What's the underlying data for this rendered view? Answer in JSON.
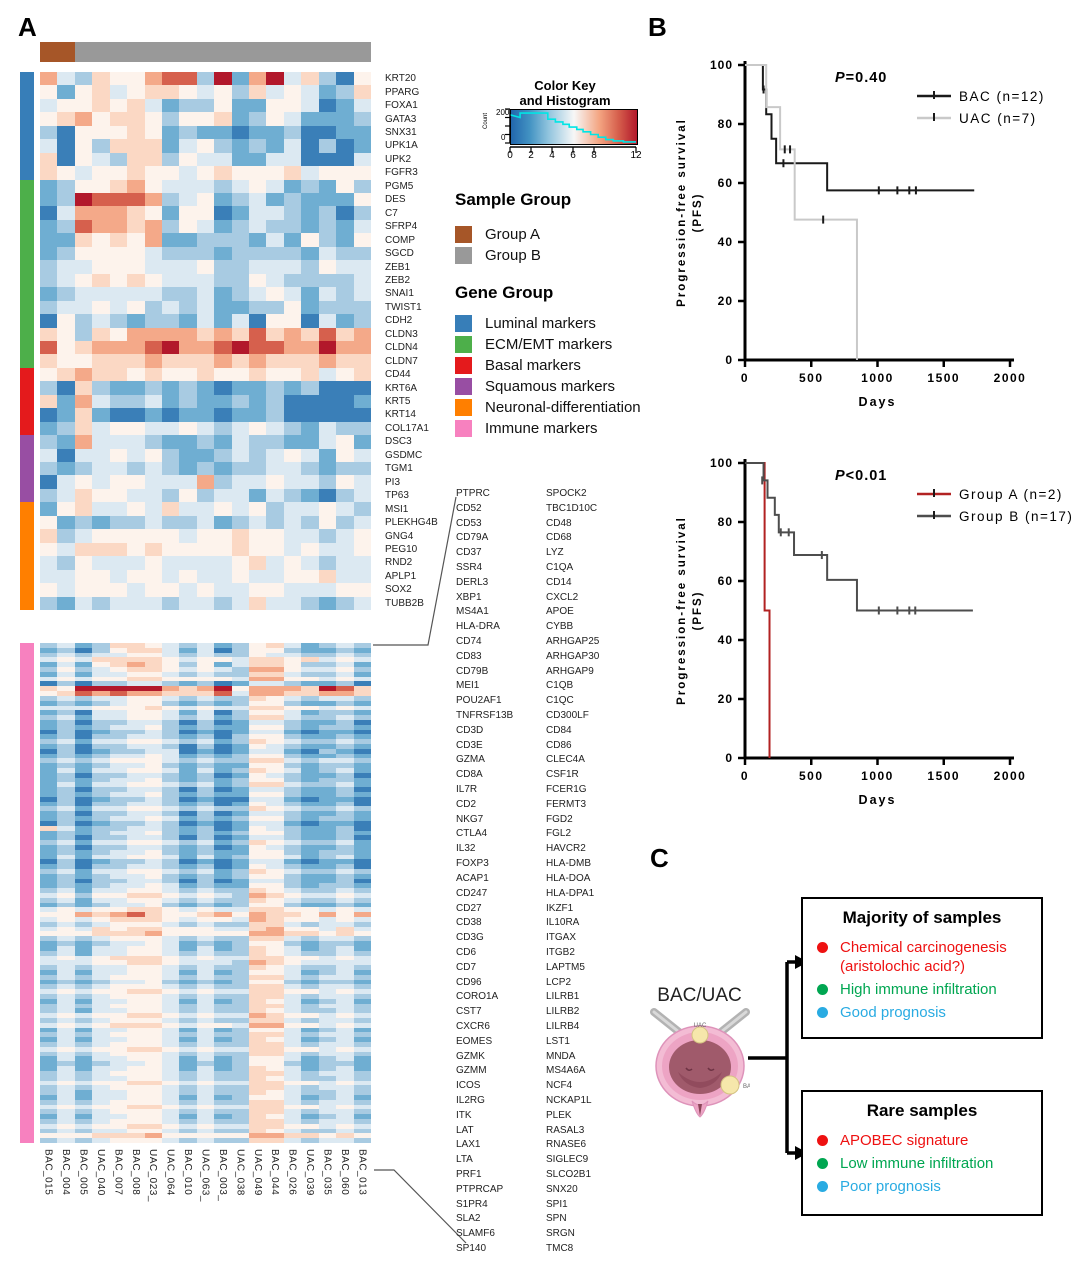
{
  "panelA": {
    "label": "A",
    "samples": [
      "BAC_015",
      "BAC_004",
      "BAC_005",
      "UAC_040",
      "BAC_007",
      "BAC_008",
      "UAC_023_",
      "UAC_064",
      "BAC_010",
      "UAC_063_",
      "BAC_003_",
      "UAC_038",
      "UAC_049",
      "BAC_044",
      "BAC_026",
      "UAC_039",
      "BAC_035",
      "BAC_060",
      "BAC_013"
    ],
    "sample_group": {
      "title": "Sample Group",
      "items": [
        {
          "label": "Group A",
          "color": "#a65628",
          "n_columns": 2
        },
        {
          "label": "Group B",
          "color": "#999999",
          "n_columns": 17
        }
      ]
    },
    "gene_group": {
      "title": "Gene Group",
      "items": [
        {
          "label": "Luminal markers",
          "color": "#377eb8",
          "rows": 8
        },
        {
          "label": "ECM/EMT markers",
          "color": "#4daf4a",
          "rows": 14
        },
        {
          "label": "Basal markers",
          "color": "#e41a1c",
          "rows": 5
        },
        {
          "label": "Squamous markers",
          "color": "#984ea3",
          "rows": 5
        },
        {
          "label": "Neuronal-differentiation",
          "color": "#ff7f00",
          "rows": 8
        },
        {
          "label": "Immune markers",
          "color": "#f781bf",
          "rows": 104
        }
      ]
    },
    "color_key": {
      "title_line1": "Color Key",
      "title_line2": "and Histogram",
      "count_label": "Count",
      "count_ticks": [
        "200",
        "0"
      ],
      "x_ticks": [
        0,
        2,
        4,
        6,
        8,
        12
      ],
      "x_max": 12,
      "hist": [
        [
          0,
          0.83
        ],
        [
          0.08,
          0.75
        ],
        [
          0.08,
          0.88
        ],
        [
          0.3,
          0.88
        ],
        [
          0.3,
          0.7
        ],
        [
          0.36,
          0.7
        ],
        [
          0.36,
          0.62
        ],
        [
          0.42,
          0.62
        ],
        [
          0.42,
          0.55
        ],
        [
          0.47,
          0.55
        ],
        [
          0.47,
          0.47
        ],
        [
          0.53,
          0.47
        ],
        [
          0.53,
          0.4
        ],
        [
          0.58,
          0.4
        ],
        [
          0.58,
          0.33
        ],
        [
          0.64,
          0.33
        ],
        [
          0.64,
          0.25
        ],
        [
          0.7,
          0.25
        ],
        [
          0.7,
          0.17
        ],
        [
          0.76,
          0.17
        ],
        [
          0.76,
          0.1
        ],
        [
          0.82,
          0.1
        ],
        [
          0.82,
          0.06
        ],
        [
          0.9,
          0.06
        ],
        [
          0.9,
          0.03
        ],
        [
          1,
          0.03
        ]
      ]
    },
    "palette": [
      "#2166ac",
      "#3a7fb8",
      "#6faed2",
      "#a8cbe2",
      "#dce9f2",
      "#fdf3ec",
      "#fbd8c4",
      "#f4a989",
      "#d6604d",
      "#b2182b"
    ],
    "immune_gene_list": {
      "left": [
        "PTPRC",
        "CD52",
        "CD53",
        "CD79A",
        "CD37",
        "SSR4",
        "DERL3",
        "XBP1",
        "MS4A1",
        "HLA-DRA",
        "CD74",
        "CD83",
        "CD79B",
        "MEI1",
        "POU2AF1",
        "TNFRSF13B",
        "CD3D",
        "CD3E",
        "GZMA",
        "CD8A",
        "IL7R",
        "CD2",
        "NKG7",
        "CTLA4",
        "IL32",
        "FOXP3",
        "ACAP1",
        "CD247",
        "CD27",
        "CD38",
        "CD3G",
        "CD6",
        "CD7",
        "CD96",
        "CORO1A",
        "CST7",
        "CXCR6",
        "EOMES",
        "GZMK",
        "GZMM",
        "ICOS",
        "IL2RG",
        "ITK",
        "LAT",
        "LAX1",
        "LTA",
        "PRF1",
        "PTPRCAP",
        "S1PR4",
        "SLA2",
        "SLAMF6",
        "SP140"
      ],
      "right": [
        "SPOCK2",
        "TBC1D10C",
        "CD48",
        "CD68",
        "LYZ",
        "C1QA",
        "CD14",
        "CXCL2",
        "APOE",
        "CYBB",
        "ARHGAP25",
        "ARHGAP30",
        "ARHGAP9",
        "C1QB",
        "C1QC",
        "CD300LF",
        "CD84",
        "CD86",
        "CLEC4A",
        "CSF1R",
        "FCER1G",
        "FERMT3",
        "FGD2",
        "FGL2",
        "HAVCR2",
        "HLA-DMB",
        "HLA-DOA",
        "HLA-DPA1",
        "IKZF1",
        "IL10RA",
        "ITGAX",
        "ITGB2",
        "LAPTM5",
        "LCP2",
        "LILRB1",
        "LILRB2",
        "LILRB4",
        "LST1",
        "MNDA",
        "MS4A6A",
        "NCF4",
        "NCKAP1L",
        "PLEK",
        "RASAL3",
        "RNASE6",
        "SIGLEC9",
        "SLCO2B1",
        "SNX20",
        "SPI1",
        "SPN",
        "SRGN",
        "TMC8"
      ]
    }
  },
  "chart_data": [
    {
      "id": "top_heatmap",
      "type": "heatmap",
      "note": "Expression levels encoded 0(low,blue)-9(high,red) per cell; value scale 0-12",
      "columns": [
        "BAC_015",
        "BAC_004",
        "BAC_005",
        "UAC_040",
        "BAC_007",
        "BAC_008",
        "UAC_023_",
        "UAC_064",
        "BAC_010",
        "UAC_063_",
        "BAC_003_",
        "UAC_038",
        "UAC_049",
        "BAC_044",
        "BAC_026",
        "UAC_039",
        "BAC_035",
        "BAC_060",
        "BAC_013"
      ],
      "rows": [
        "KRT20",
        "PPARG",
        "FOXA1",
        "GATA3",
        "SNX31",
        "UPK1A",
        "UPK2",
        "FGFR3",
        "PGM5",
        "DES",
        "C7",
        "SFRP4",
        "COMP",
        "SGCD",
        "ZEB1",
        "ZEB2",
        "SNAI1",
        "TWIST1",
        "CDH2",
        "CLDN3",
        "CLDN4",
        "CLDN7",
        "CD44",
        "KRT6A",
        "KRT5",
        "KRT14",
        "COL17A1",
        "DSC3",
        "GSDMC",
        "TGM1",
        "PI3",
        "TP63",
        "MSI1",
        "PLEKHG4B",
        "GNG4",
        "PEG10",
        "RND2",
        "APLP1",
        "SOX2",
        "TUBB2B"
      ],
      "level_strings": [
        "7436557883927946315",
        "5256456654536454236",
        "4556564233522554124",
        "5675665355623542223",
        "3155565232212231122",
        "4153666245323241312",
        "6154366354422441114",
        "6545565545655564555",
        "2355675444345423253",
        "2398887345234232225",
        "1477765255124432313",
        "2387767354234332324",
        "2265657223332425325",
        "2355554333233332433",
        "3445554445334443544",
        "3456565444335433334",
        "2344444334234542434",
        "3445453434223352333",
        "1534323324241551423",
        "6536577776768676867",
        "8567778977898877977",
        "6556667666767666766",
        "5676656556556556456",
        "3163223232122323111",
        "6274334232232311112",
        "1262112122122311111",
        "2364554454345432433",
        "3274443223243322452",
        "4144545322343454254",
        "3234434323233443233",
        "1454554447344544354",
        "3465544353442432134",
        "2564454644545344543",
        "5232334334234343534",
        "6345555545565544345",
        "5466656555565545445",
        "4354445444456454344",
        "4455455454454455644",
        "5455545545445544455",
        "3243444344346443234"
      ]
    },
    {
      "id": "bottom_heatmap",
      "type": "heatmap",
      "note": "Immune marker genes, row order = immune_gene_list left column then right column",
      "columns": [
        "BAC_015",
        "BAC_004",
        "BAC_005",
        "UAC_040",
        "BAC_007",
        "BAC_008",
        "UAC_023_",
        "UAC_064",
        "BAC_010",
        "UAC_063_",
        "BAC_003_",
        "UAC_038",
        "UAC_049",
        "BAC_044",
        "BAC_026",
        "UAC_039",
        "BAC_035",
        "BAC_060",
        "BAC_013"
      ],
      "level_strings": [
        "3423665434235642343",
        "2313566424135532232",
        "3434455434335443343",
        "4546666545546656454",
        "2425676535246653342",
        "3534566545437754453",
        "2424455434336643342",
        "4545566555547755454",
        "1313344323124432231",
        "6599999767957776986",
        "5687877666847766776",
        "3434455434336543443",
        "2323455323235532232",
        "4445556545446655454",
        "2314455424135542332",
        "3424455434236643343",
        "2313344313124432231",
        "2323445323225532332",
        "1312334312124421221",
        "2313344323135532232",
        "3424455434236543343",
        "2313344313125432232",
        "1312334412124421321",
        "2323445423235532232",
        "3434555434336643443",
        "2323445323225532332",
        "2424455424236542342",
        "2313344323125432231",
        "2323445323235532332",
        "2424455434236643342",
        "2313344313124432231",
        "2323445323225532232",
        "1312334312114421221",
        "2313344323125432231",
        "3424455434336543343",
        "2313344313124432232",
        "2323445423235532332",
        "1312334312124421221",
        "6423344323125432231",
        "2323445323235532232",
        "2313344313124432231",
        "3424455434236543342",
        "2313344323125432232",
        "2323445323225532332",
        "2424455424235542342",
        "1312334312124421221",
        "2313344323125432231",
        "3424455434236543343",
        "2323445323235532232",
        "2313344313124432231",
        "2323445423225532332",
        "3424455434336543343",
        "4535566545437654454",
        "3424455434336543343",
        "2323445323235532232",
        "4545566545446655454",
        "5576786556757665757",
        "4545666545547655454",
        "3434555434336643443",
        "4546566555446755464",
        "5556667555557766565",
        "3434555434336643443",
        "2323445423235532332",
        "2424455424236542342",
        "3424455434336543343",
        "4545666545446655454",
        "4445566544437654444",
        "3434455434336543343",
        "2424455424235542342",
        "3434555434336643443",
        "2323445323235532332",
        "3434555434336643443",
        "4545566545446655454",
        "3434555434336643443",
        "2424455424236542342",
        "3434555434336643443",
        "3424455434336543343",
        "4545566545447655454",
        "3434555434336643443",
        "4545666545547755454",
        "2424455424235542342",
        "3434555434336643443",
        "2424455424236542342",
        "3434555434336643443",
        "4545566545446655454",
        "3434555434336643443",
        "2424455424235542342",
        "2323445423235532332",
        "2424455424236542342",
        "3434555434336643443",
        "3434455434336543343",
        "4545566545446655454",
        "3434555434336643443",
        "3424455434336543343",
        "2424455424235542342",
        "3434555434336643443",
        "4545566545446655454",
        "3434555434336643443",
        "2424455424236542342",
        "3434555434336643443",
        "4545566545446655454",
        "3434455434336543343",
        "5556667555557766565",
        "3434555434336643443"
      ]
    },
    {
      "id": "pfs_bac_uac",
      "type": "line",
      "subtype": "kaplan-meier-step",
      "p_sym": "P",
      "p_rest": "=0.40",
      "xlabel": "Days",
      "ylabel_line1": "Progression-free survival",
      "ylabel_line2": "(PFS)",
      "x_ticks": [
        0,
        500,
        1000,
        1500,
        2000
      ],
      "y_ticks": [
        0,
        20,
        40,
        60,
        80,
        100
      ],
      "xlim": [
        0,
        2000
      ],
      "ylim": [
        0,
        100
      ],
      "series": [
        {
          "name": "BAC (n=12)",
          "color": "#1a1a1a",
          "steps": [
            [
              0,
              100
            ],
            [
              135,
              100
            ],
            [
              135,
              91.7
            ],
            [
              160,
              91.7
            ],
            [
              160,
              83.3
            ],
            [
              200,
              83.3
            ],
            [
              200,
              75
            ],
            [
              235,
              75
            ],
            [
              235,
              66.7
            ],
            [
              620,
              66.7
            ],
            [
              620,
              57.5
            ],
            [
              1730,
              57.5
            ]
          ],
          "censors": [
            [
              140,
              91.7
            ],
            [
              290,
              66.7
            ],
            [
              1010,
              57.5
            ],
            [
              1150,
              57.5
            ],
            [
              1240,
              57.5
            ],
            [
              1290,
              57.5
            ]
          ]
        },
        {
          "name": "UAC (n=7)",
          "color": "#c9c9c9",
          "steps": [
            [
              0,
              100
            ],
            [
              160,
              100
            ],
            [
              160,
              85.7
            ],
            [
              265,
              85.7
            ],
            [
              265,
              71.4
            ],
            [
              375,
              71.4
            ],
            [
              375,
              47.6
            ],
            [
              845,
              47.6
            ],
            [
              845,
              0
            ]
          ],
          "censors": [
            [
              300,
              71.4
            ],
            [
              340,
              71.4
            ],
            [
              590,
              47.6
            ]
          ]
        }
      ]
    },
    {
      "id": "pfs_groupA_groupB",
      "type": "line",
      "subtype": "kaplan-meier-step",
      "p_sym": "P",
      "p_rest": "<0.01",
      "xlabel": "Days",
      "ylabel_line1": "Progression-free survival",
      "ylabel_line2": "(PFS)",
      "x_ticks": [
        0,
        500,
        1000,
        1500,
        2000
      ],
      "y_ticks": [
        0,
        20,
        40,
        60,
        80,
        100
      ],
      "xlim": [
        0,
        2000
      ],
      "ylim": [
        0,
        100
      ],
      "series": [
        {
          "name": "Group A (n=2)",
          "color": "#b22222",
          "steps": [
            [
              0,
              100
            ],
            [
              148,
              100
            ],
            [
              148,
              50
            ],
            [
              185,
              50
            ],
            [
              185,
              0
            ]
          ],
          "censors": []
        },
        {
          "name": "Group B (n=17)",
          "color": "#4d4d4d",
          "steps": [
            [
              0,
              100
            ],
            [
              140,
              100
            ],
            [
              140,
              94.1
            ],
            [
              170,
              94.1
            ],
            [
              170,
              88.2
            ],
            [
              225,
              88.2
            ],
            [
              225,
              82.4
            ],
            [
              255,
              82.4
            ],
            [
              255,
              76.5
            ],
            [
              370,
              76.5
            ],
            [
              370,
              68.8
            ],
            [
              620,
              68.8
            ],
            [
              620,
              60.4
            ],
            [
              845,
              60.4
            ],
            [
              845,
              50
            ],
            [
              1720,
              50
            ]
          ],
          "censors": [
            [
              130,
              94.1
            ],
            [
              270,
              76.5
            ],
            [
              330,
              76.5
            ],
            [
              580,
              68.8
            ],
            [
              1010,
              50
            ],
            [
              1150,
              50
            ],
            [
              1240,
              50
            ],
            [
              1285,
              50
            ]
          ]
        }
      ]
    }
  ],
  "panelB": {
    "label": "B"
  },
  "panelC": {
    "label": "C",
    "source_label": "BAC/UAC",
    "bladder": {
      "top_tag": "UAC",
      "side_tag": "BAC"
    },
    "majority": {
      "title": "Majority of samples",
      "items": [
        {
          "color": "#ee1111",
          "lines": [
            "Chemical carcinogenesis",
            "(aristolochic acid?)"
          ]
        },
        {
          "color": "#00a651",
          "lines": [
            "High immune infiltration"
          ]
        },
        {
          "color": "#29abe2",
          "lines": [
            "Good prognosis"
          ]
        }
      ]
    },
    "rare": {
      "title": "Rare samples",
      "items": [
        {
          "color": "#ee1111",
          "lines": [
            "APOBEC signature"
          ]
        },
        {
          "color": "#00a651",
          "lines": [
            "Low immune infiltration"
          ]
        },
        {
          "color": "#29abe2",
          "lines": [
            "Poor prognosis"
          ]
        }
      ]
    }
  }
}
